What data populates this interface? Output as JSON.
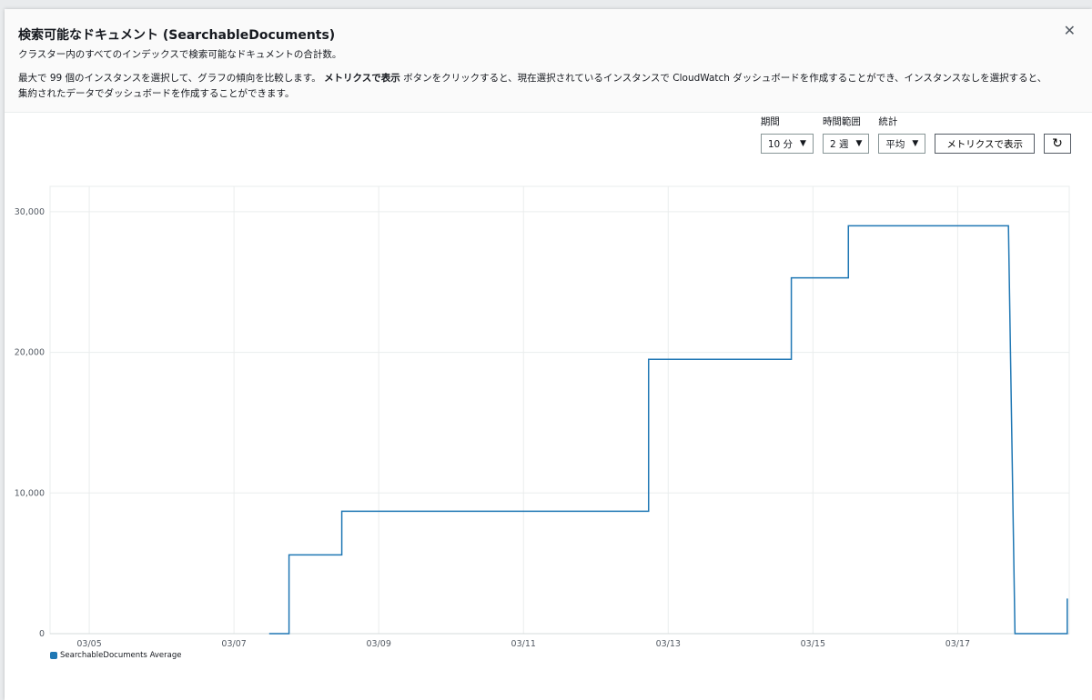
{
  "modal": {
    "title": "検索可能なドキュメント (SearchableDocuments)",
    "subtitle": "クラスター内のすべてのインデックスで検索可能なドキュメントの合計数。",
    "desc_pre": "最大で 99 個のインスタンスを選択して、グラフの傾向を比較します。 ",
    "desc_bold": "メトリクスで表示",
    "desc_post": " ボタンをクリックすると、現在選択されているインスタンスで CloudWatch ダッシュボードを作成することができ、インスタンスなしを選択すると、集約されたデータでダッシュボードを作成することができます。",
    "close_icon": "close-icon"
  },
  "controls": {
    "period_label": "期間",
    "period_value": "10 分",
    "range_label": "時間範囲",
    "range_value": "2 週",
    "stat_label": "統計",
    "stat_value": "平均",
    "view_metrics": "メトリクスで表示",
    "refresh_icon": "refresh-icon",
    "caret": "▼"
  },
  "chart_data": {
    "type": "line",
    "step": true,
    "grid": true,
    "legend": "bottom-left",
    "color": "#1f77b4",
    "x_ticks": [
      "03/05",
      "03/07",
      "03/09",
      "03/11",
      "03/13",
      "03/15",
      "03/17"
    ],
    "y_ticks": [
      "0",
      "10,000",
      "20,000",
      "30,000"
    ],
    "ylim": [
      0,
      31800
    ],
    "xlim": [
      "03/04 11:00",
      "03/18 13:00"
    ],
    "series": [
      {
        "name": "SearchableDocuments Average",
        "points": [
          [
            "03/07 11:40",
            0
          ],
          [
            "03/07 18:15",
            5600
          ],
          [
            "03/08 11:45",
            8700
          ],
          [
            "03/12 17:30",
            19500
          ],
          [
            "03/14 16:50",
            25300
          ],
          [
            "03/15 11:45",
            29000
          ],
          [
            "03/17 16:50",
            29000
          ],
          [
            "03/17 19:00",
            0
          ],
          [
            "03/18 12:15",
            0
          ],
          [
            "03/18 12:20",
            2500
          ]
        ]
      }
    ]
  }
}
